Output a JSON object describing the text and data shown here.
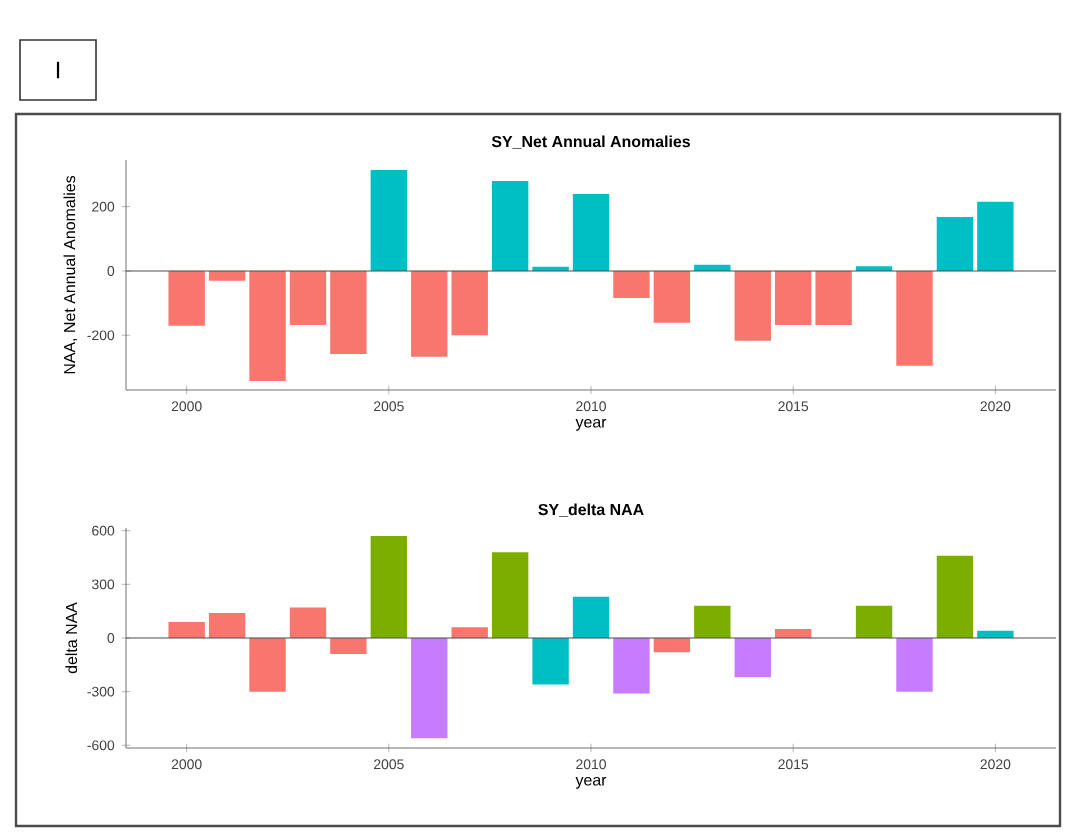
{
  "chart_data": [
    {
      "type": "bar",
      "title": "SY_Net Annual Anomalies",
      "xlabel": "year",
      "ylabel": "NAA, Net Annual Anomalies",
      "annotations": [
        "I"
      ],
      "x": [
        2000,
        2001,
        2002,
        2003,
        2004,
        2005,
        2006,
        2007,
        2008,
        2009,
        2010,
        2011,
        2012,
        2013,
        2014,
        2015,
        2016,
        2017,
        2018,
        2019,
        2020
      ],
      "values": [
        -170,
        -30,
        -342,
        -168,
        -258,
        314,
        -267,
        -200,
        280,
        13,
        239,
        -84,
        -161,
        19,
        -217,
        -168,
        -168,
        15,
        -295,
        168,
        215
      ],
      "colors": [
        "#f8766d",
        "#f8766d",
        "#f8766d",
        "#f8766d",
        "#f8766d",
        "#00bfc4",
        "#f8766d",
        "#f8766d",
        "#00bfc4",
        "#00bfc4",
        "#00bfc4",
        "#f8766d",
        "#f8766d",
        "#00bfc4",
        "#f8766d",
        "#f8766d",
        "#f8766d",
        "#00bfc4",
        "#f8766d",
        "#00bfc4",
        "#00bfc4"
      ],
      "xlim": [
        1998.5,
        2021.5
      ],
      "ylim": [
        -370,
        345
      ],
      "xticks": [
        2000,
        2005,
        2010,
        2015,
        2020
      ],
      "yticks": [
        -200,
        0,
        200
      ],
      "ref_lines": [
        {
          "axis": "y",
          "value": 0
        }
      ],
      "grid": false
    },
    {
      "type": "bar",
      "title": "SY_delta NAA",
      "xlabel": "year",
      "ylabel": "delta NAA",
      "x": [
        2000,
        2001,
        2002,
        2003,
        2004,
        2005,
        2006,
        2007,
        2008,
        2009,
        2010,
        2011,
        2012,
        2013,
        2014,
        2015,
        2016,
        2017,
        2018,
        2019,
        2020
      ],
      "values": [
        90,
        140,
        -300,
        170,
        -90,
        570,
        -560,
        60,
        480,
        -260,
        230,
        -310,
        -80,
        180,
        -220,
        50,
        0,
        180,
        -300,
        460,
        40
      ],
      "colors": [
        "#f8766d",
        "#f8766d",
        "#f8766d",
        "#f8766d",
        "#f8766d",
        "#7cae00",
        "#c77cff",
        "#f8766d",
        "#7cae00",
        "#00bfc4",
        "#00bfc4",
        "#c77cff",
        "#f8766d",
        "#7cae00",
        "#c77cff",
        "#f8766d",
        "#f8766d",
        "#7cae00",
        "#c77cff",
        "#7cae00",
        "#00bfc4"
      ],
      "xlim": [
        1998.5,
        2021.5
      ],
      "ylim": [
        -615,
        615
      ],
      "xticks": [
        2000,
        2005,
        2010,
        2015,
        2020
      ],
      "yticks": [
        -600,
        -300,
        0,
        300,
        600
      ],
      "ref_lines": [
        {
          "axis": "y",
          "value": 0
        }
      ],
      "grid": false
    }
  ]
}
